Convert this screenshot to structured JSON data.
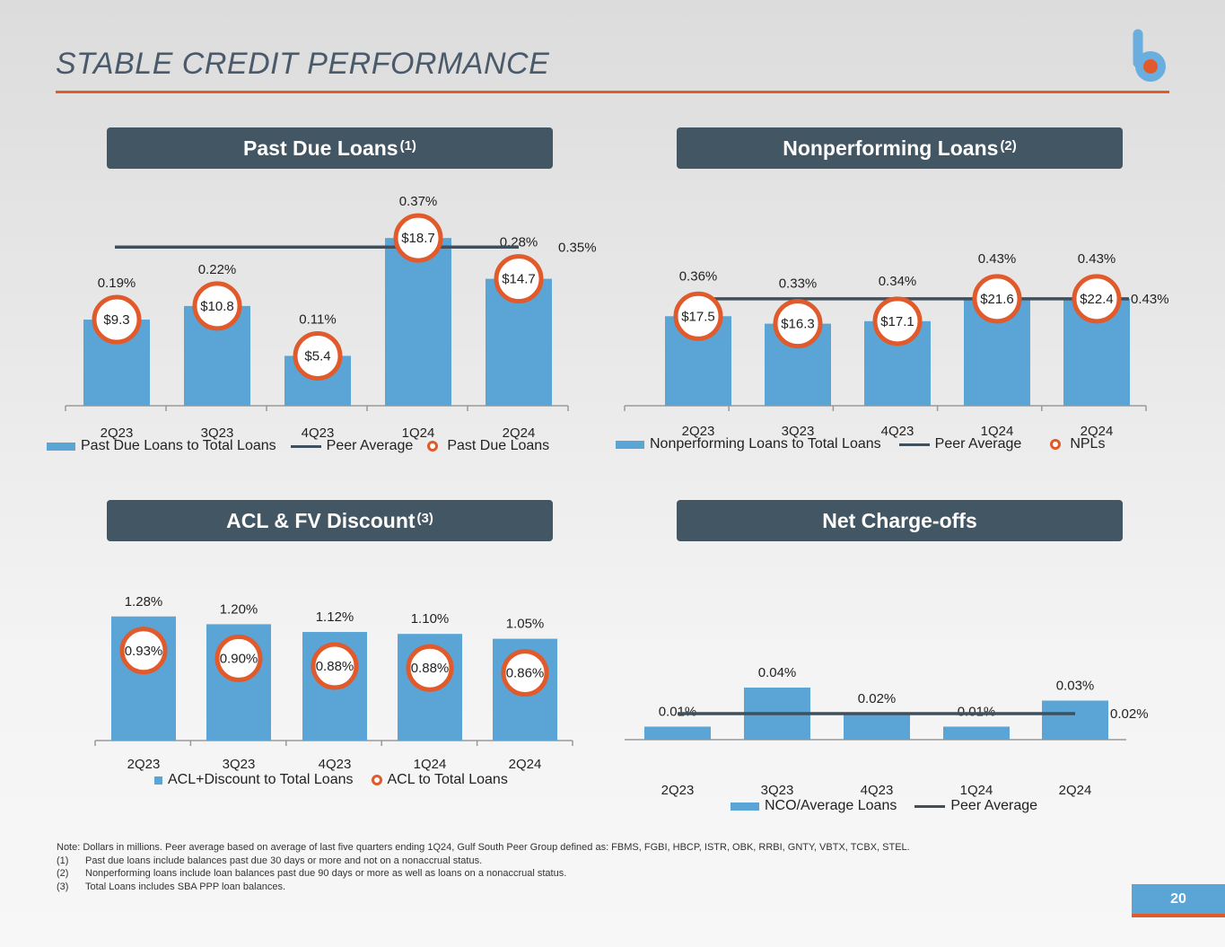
{
  "page": {
    "title": "STABLE CREDIT PERFORMANCE",
    "page_number": "20",
    "logo": "b"
  },
  "colors": {
    "bar": "#5ba4d6",
    "peer": "#3f4f5c",
    "accent": "#e05a2b",
    "header": "#435663"
  },
  "headers": {
    "past_due": {
      "label": "Past Due Loans",
      "sup": "(1)"
    },
    "npl": {
      "label": "Nonperforming Loans",
      "sup": "(2)"
    },
    "acl": {
      "label": "ACL & FV Discount",
      "sup": "(3)"
    },
    "nco": {
      "label": "Net Charge-offs",
      "sup": ""
    }
  },
  "chart_data": [
    {
      "id": "past_due",
      "type": "bar",
      "categories": [
        "2Q23",
        "3Q23",
        "4Q23",
        "1Q24",
        "2Q24"
      ],
      "series": [
        {
          "name": "Past Due Loans to Total Loans",
          "values": [
            0.19,
            0.22,
            0.11,
            0.37,
            0.28
          ],
          "labels": [
            "0.19%",
            "0.22%",
            "0.11%",
            "0.37%",
            "0.28%"
          ]
        },
        {
          "name": "Peer Average",
          "type": "line",
          "value": 0.35,
          "label": "0.35%"
        },
        {
          "name": "Past Due Loans",
          "type": "marker",
          "values": [
            9.3,
            10.8,
            5.4,
            18.7,
            14.7
          ],
          "labels": [
            "$9.3",
            "$10.8",
            "$5.4",
            "$18.7",
            "$14.7"
          ]
        }
      ],
      "unit": "%"
    },
    {
      "id": "npl",
      "type": "bar",
      "categories": [
        "2Q23",
        "3Q23",
        "4Q23",
        "1Q24",
        "2Q24"
      ],
      "series": [
        {
          "name": "Nonperforming Loans to Total Loans",
          "values": [
            0.36,
            0.33,
            0.34,
            0.43,
            0.43
          ],
          "labels": [
            "0.36%",
            "0.33%",
            "0.34%",
            "0.43%",
            "0.43%"
          ]
        },
        {
          "name": "Peer Average",
          "type": "line",
          "value": 0.43,
          "label": "0.43%"
        },
        {
          "name": "NPLs",
          "type": "marker",
          "values": [
            17.5,
            16.3,
            17.1,
            21.6,
            22.4
          ],
          "labels": [
            "$17.5",
            "$16.3",
            "$17.1",
            "$21.6",
            "$22.4"
          ]
        }
      ],
      "unit": "%"
    },
    {
      "id": "acl",
      "type": "bar",
      "categories": [
        "2Q23",
        "3Q23",
        "4Q23",
        "1Q24",
        "2Q24"
      ],
      "series": [
        {
          "name": "ACL+Discount to Total Loans",
          "values": [
            1.28,
            1.2,
            1.12,
            1.1,
            1.05
          ],
          "labels": [
            "1.28%",
            "1.20%",
            "1.12%",
            "1.10%",
            "1.05%"
          ]
        },
        {
          "name": "ACL to Total Loans",
          "type": "marker",
          "values": [
            0.93,
            0.9,
            0.88,
            0.88,
            0.86
          ],
          "labels": [
            "0.93%",
            "0.90%",
            "0.88%",
            "0.88%",
            "0.86%"
          ]
        }
      ],
      "unit": "%"
    },
    {
      "id": "nco",
      "type": "bar",
      "categories": [
        "2Q23",
        "3Q23",
        "4Q23",
        "1Q24",
        "2Q24"
      ],
      "series": [
        {
          "name": "NCO/Average Loans",
          "values": [
            0.01,
            0.04,
            0.02,
            0.01,
            0.03
          ],
          "labels": [
            "0.01%",
            "0.04%",
            "0.02%",
            "0.01%",
            "0.03%"
          ]
        },
        {
          "name": "Peer Average",
          "type": "line",
          "value": 0.02,
          "label": "0.02%"
        }
      ],
      "unit": "%"
    }
  ],
  "notes": {
    "main": "Note: Dollars in millions. Peer average based on average of last five quarters ending 1Q24, Gulf South Peer Group defined as: FBMS, FGBI, HBCP, ISTR, OBK, RRBI, GNTY, VBTX, TCBX, STEL.",
    "items": [
      {
        "num": "(1)",
        "text": "Past due loans include balances past due 30 days or more and not on a nonaccrual status."
      },
      {
        "num": "(2)",
        "text": "Nonperforming loans include loan balances past due 90 days or more as well as loans on a nonaccrual status."
      },
      {
        "num": "(3)",
        "text": "Total Loans includes SBA PPP loan balances."
      }
    ]
  }
}
